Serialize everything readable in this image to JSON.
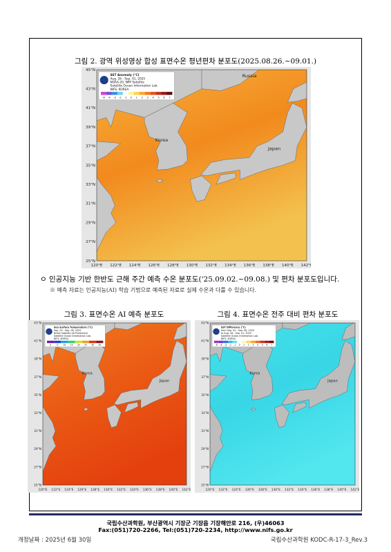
{
  "figure2": {
    "caption": "그림 2. 광역 위성영상 합성 표면수온 평년편차 분포도(2025.08.26.~09.01.)",
    "map": {
      "legend": [
        "SST Anomaly (°C)",
        "Aug. 26 - Sep. 01, 2025",
        "NOAA-20, NPP Satellite",
        "Satellite Ocean Information Lab.",
        "NIFS, KOREA"
      ],
      "scale": [
        "-6",
        "-4",
        "-3",
        "-2",
        "-1",
        "0",
        "1",
        "2",
        "3",
        "4",
        "5",
        "6",
        "7"
      ],
      "lat_labels": [
        "45°N",
        "43°N",
        "41°N",
        "39°N",
        "37°N",
        "35°N",
        "33°N",
        "31°N",
        "29°N",
        "27°N",
        "25°N"
      ],
      "lon_labels": [
        "120°E",
        "122°E",
        "124°E",
        "126°E",
        "128°E",
        "130°E",
        "132°E",
        "134°E",
        "136°E",
        "138°E",
        "140°E",
        "142°E"
      ],
      "places": [
        "Russia",
        "Korea",
        "Japan"
      ]
    }
  },
  "notice": {
    "bullet": "ㅇ 인공지능 기반 한반도 근해 주간 예측 수온 분포도('25.09.02.~09.08.) 및 편차 분포도입니다.",
    "note": "※ 예측 자료는 인공지능(AI) 학습 기법으로 예측된 자료로 실제 수온과 다를 수 있습니다."
  },
  "figure3": {
    "caption": "그림 3. 표면수온 AI 예측 분포도",
    "map": {
      "legend": [
        "Sea Surface Temperature (°C)",
        "Sep. 02 - Sep. 08, 2025",
        "NOAA Satellite (AI Prediction)",
        "Satellite Ocean Information Lab.",
        "NIFS, KOREA"
      ],
      "scale": [
        "0",
        "5",
        "10",
        "15",
        "20",
        "25",
        "30",
        "35"
      ],
      "lat_labels": [
        "43°N",
        "41°N",
        "39°N",
        "37°N",
        "35°N",
        "33°N",
        "31°N",
        "29°N",
        "27°N",
        "25°N"
      ],
      "lon_labels": [
        "120°E",
        "122°E",
        "124°E",
        "126°E",
        "128°E",
        "130°E",
        "132°E",
        "134°E",
        "136°E",
        "138°E",
        "140°E",
        "142°E"
      ],
      "places": [
        "Korea",
        "Japan"
      ]
    }
  },
  "figure4": {
    "caption": "그림 4. 표면수온 전주 대비 편차 분포도",
    "map": {
      "legend": [
        "SST Difference (°C)",
        "from Sep. 02 - Sep. 08, 2025",
        "to Aug. 26 - Sep. 01, 2025",
        "Satellite Ocean Information Lab.",
        "NIFS, KOREA"
      ],
      "scale": [
        "-8",
        "-6",
        "-4",
        "-2",
        "-1",
        "0",
        "1",
        "2",
        "3",
        "4",
        "5",
        "6",
        "7"
      ],
      "lat_labels": [
        "43°N",
        "41°N",
        "39°N",
        "37°N",
        "35°N",
        "33°N",
        "31°N",
        "29°N",
        "27°N",
        "25°N"
      ],
      "lon_labels": [
        "120°E",
        "122°E",
        "124°E",
        "126°E",
        "128°E",
        "130°E",
        "132°E",
        "134°E",
        "136°E",
        "138°E",
        "140°E",
        "142°E"
      ],
      "places": [
        "Korea",
        "Japan"
      ]
    }
  },
  "footer": {
    "address": "국립수산과학원, 부산광역시 기장군 기장읍 기장해안로 216, (우)46063",
    "contact": "Fax:(051)720-2266, Tel:(051)720-2234, http://www.nifs.go.kr",
    "revision_date": "개정날짜 : 2025년 6월 30일",
    "doc_id": "국립수산과학원 KODC-R-17-3_Rev.3"
  }
}
